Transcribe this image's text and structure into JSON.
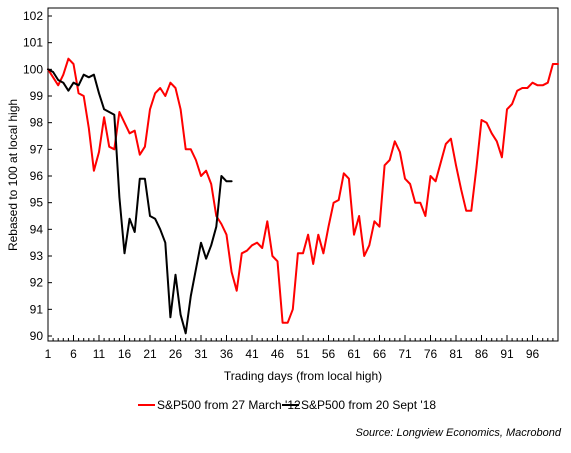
{
  "chart_data": {
    "type": "line",
    "xlabel": "Trading days (from local high)",
    "ylabel": "Rebased to 100 at local high",
    "xlim": [
      1,
      101
    ],
    "ylim": [
      90,
      102
    ],
    "xticks": [
      1,
      6,
      11,
      16,
      21,
      26,
      31,
      36,
      41,
      46,
      51,
      56,
      61,
      66,
      71,
      76,
      81,
      86,
      91,
      96
    ],
    "yticks": [
      90,
      91,
      92,
      93,
      94,
      95,
      96,
      97,
      98,
      99,
      100,
      101,
      102
    ],
    "grid": false,
    "legend_position": "bottom",
    "source": "Source: Longview Economics, Macrobond",
    "series": [
      {
        "name": "S&P500 from 27 March '12",
        "color": "#ff0000",
        "x": [
          1,
          2,
          3,
          4,
          5,
          6,
          7,
          8,
          9,
          10,
          11,
          12,
          13,
          14,
          15,
          16,
          17,
          18,
          19,
          20,
          21,
          22,
          23,
          24,
          25,
          26,
          27,
          28,
          29,
          30,
          31,
          32,
          33,
          34,
          35,
          36,
          37,
          38,
          39,
          40,
          41,
          42,
          43,
          44,
          45,
          46,
          47,
          48,
          49,
          50,
          51,
          52,
          53,
          54,
          55,
          56,
          57,
          58,
          59,
          60,
          61,
          62,
          63,
          64,
          65,
          66,
          67,
          68,
          69,
          70,
          71,
          72,
          73,
          74,
          75,
          76,
          77,
          78,
          79,
          80,
          81,
          82,
          83,
          84,
          85,
          86,
          87,
          88,
          89,
          90,
          91,
          92,
          93,
          94,
          95,
          96,
          97,
          98,
          99,
          100,
          101
        ],
        "y": [
          100.0,
          99.7,
          99.4,
          99.8,
          100.4,
          100.2,
          99.1,
          99.0,
          97.8,
          96.2,
          96.9,
          98.2,
          97.1,
          97.0,
          98.4,
          98.0,
          97.6,
          97.7,
          96.8,
          97.1,
          98.5,
          99.1,
          99.3,
          99.0,
          99.5,
          99.3,
          98.5,
          97.0,
          97.0,
          96.6,
          96.0,
          96.2,
          95.7,
          94.5,
          94.2,
          93.8,
          92.4,
          91.7,
          93.1,
          93.2,
          93.4,
          93.5,
          93.3,
          94.3,
          93.0,
          92.8,
          90.5,
          90.5,
          91.0,
          93.1,
          93.1,
          93.8,
          92.7,
          93.8,
          93.1,
          94.1,
          95.0,
          95.1,
          96.1,
          95.9,
          93.8,
          94.5,
          93.0,
          93.4,
          94.3,
          94.1,
          96.4,
          96.6,
          97.3,
          96.9,
          95.9,
          95.7,
          95.0,
          95.0,
          94.5,
          96.0,
          95.8,
          96.5,
          97.2,
          97.4,
          96.4,
          95.5,
          94.7,
          94.7,
          96.3,
          98.1,
          98.0,
          97.6,
          97.3,
          96.7,
          98.5,
          98.7,
          99.2,
          99.3,
          99.3,
          99.5,
          99.4,
          99.4,
          99.5,
          100.2,
          100.2
        ]
      },
      {
        "name": "S&P500 from 20 Sept '18",
        "color": "#000000",
        "x": [
          1,
          2,
          3,
          4,
          5,
          6,
          7,
          8,
          9,
          10,
          11,
          12,
          13,
          14,
          15,
          16,
          17,
          18,
          19,
          20,
          21,
          22,
          23,
          24,
          25,
          26,
          27,
          28,
          29,
          30,
          31,
          32,
          33,
          34,
          35,
          36,
          37
        ],
        "y": [
          100.0,
          99.9,
          99.6,
          99.5,
          99.2,
          99.5,
          99.4,
          99.8,
          99.7,
          99.8,
          99.1,
          98.5,
          98.4,
          98.3,
          95.2,
          93.1,
          94.4,
          93.9,
          95.9,
          95.9,
          94.5,
          94.4,
          94.0,
          93.5,
          90.7,
          92.3,
          90.8,
          90.1,
          91.5,
          92.5,
          93.5,
          92.9,
          93.4,
          94.1,
          96.0,
          95.8,
          95.8
        ]
      }
    ]
  }
}
